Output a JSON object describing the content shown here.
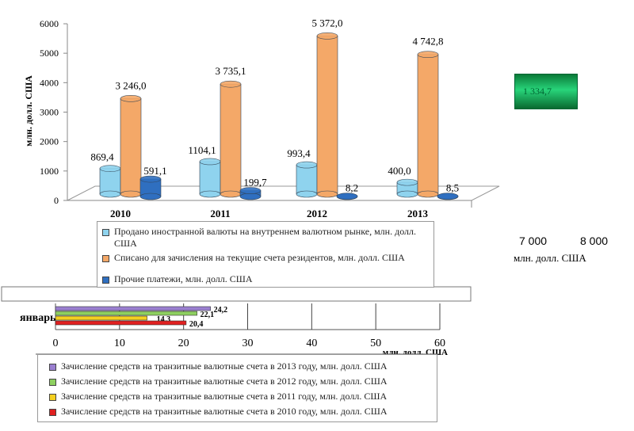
{
  "chart_data": [
    {
      "type": "bar",
      "subtype": "3d-cylinder",
      "categories": [
        "2010",
        "2011",
        "2012",
        "2013"
      ],
      "ylabel": "млн. долл. США",
      "ylim": [
        0,
        6000
      ],
      "yticks": [
        0,
        1000,
        2000,
        3000,
        4000,
        5000,
        6000
      ],
      "series": [
        {
          "name": "Продано иностранной валюты на внутреннем валютном рынке, млн. долл. США",
          "color": "#8fd3ee",
          "values": [
            869.4,
            1104.1,
            993.4,
            400.0
          ],
          "labels": [
            "869,4",
            "1104,1",
            "993,4",
            "400,0"
          ]
        },
        {
          "name": "Списано для зачисления на текущие счета резидентов, млн. долл. США",
          "color": "#f4a868",
          "values": [
            3246.0,
            3735.1,
            5372.0,
            4742.8
          ],
          "labels": [
            "3 246,0",
            "3 735,1",
            "5 372,0",
            "4 742,8"
          ]
        },
        {
          "name": "Прочие платежи, млн. долл. США",
          "color": "#2f6fc0",
          "values": [
            591.1,
            199.7,
            8.2,
            8.5
          ],
          "labels": [
            "591,1",
            "199,7",
            "8,2",
            "8,5"
          ]
        }
      ]
    },
    {
      "type": "bar",
      "subtype": "horizontal",
      "categories": [
        "январь"
      ],
      "xlabel": "млн. долл. США",
      "xlim": [
        0,
        60
      ],
      "xticks": [
        0,
        10,
        20,
        30,
        40,
        50,
        60
      ],
      "series": [
        {
          "name": "Зачисление средств на транзитные валютные счета в 2013 году, млн. долл. США",
          "color": "#9a7fd0",
          "values": [
            24.2
          ],
          "labels": [
            "24,2"
          ]
        },
        {
          "name": "Зачисление средств на транзитные валютные счета в 2012 году, млн. долл. США",
          "color": "#8ed060",
          "values": [
            22.1
          ],
          "labels": [
            "22,1"
          ]
        },
        {
          "name": "Зачисление средств на транзитные валютные счета в 2011 году, млн. долл. США",
          "color": "#f5d020",
          "values": [
            14.3
          ],
          "labels": [
            "14,3"
          ]
        },
        {
          "name": "Зачисление средств на транзитные валютные счета в 2010 году, млн. долл. США",
          "color": "#e02020",
          "values": [
            20.4
          ],
          "labels": [
            "20,4"
          ]
        }
      ]
    }
  ],
  "background_fragment": {
    "green_value": "1 334,7",
    "xticks": [
      "7 000",
      "8 000"
    ],
    "xlabel": "млн. долл. США"
  }
}
